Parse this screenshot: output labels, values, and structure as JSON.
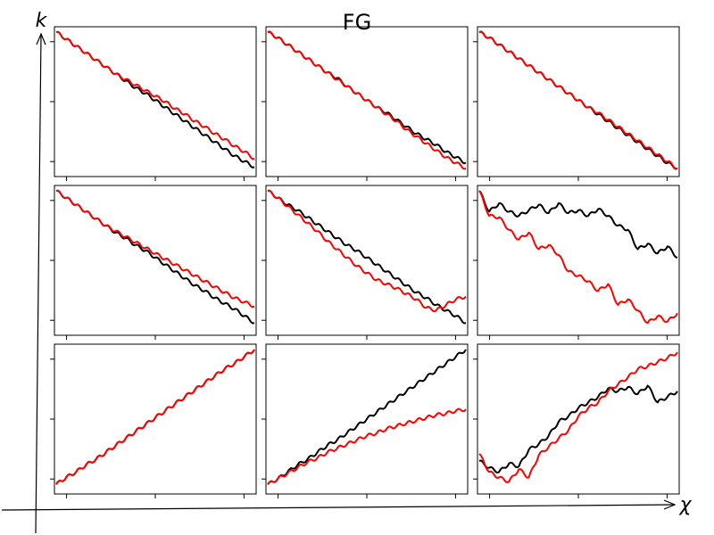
{
  "figure": {
    "title": "FG",
    "x_axis_label": "χ",
    "y_axis_label": "k"
  },
  "colors": {
    "black_series": "#000000",
    "red_series": "#ff0000"
  },
  "chart_data": [
    {
      "type": "line",
      "grid": false,
      "x": [
        0,
        0.05,
        0.1,
        0.15,
        0.2,
        0.25,
        0.3,
        0.35,
        0.4,
        0.45,
        0.5,
        0.55,
        0.6,
        0.65,
        0.7,
        0.75,
        0.8,
        0.85,
        0.9,
        0.95,
        1.0
      ],
      "series": [
        {
          "color": "black",
          "values": [
            1.0,
            0.95,
            0.9,
            0.85,
            0.8,
            0.75,
            0.7,
            0.65,
            0.6,
            0.56,
            0.51,
            0.46,
            0.41,
            0.36,
            0.31,
            0.26,
            0.21,
            0.16,
            0.11,
            0.07,
            0.03
          ]
        },
        {
          "color": "red",
          "values": [
            1.0,
            0.95,
            0.9,
            0.85,
            0.8,
            0.75,
            0.7,
            0.66,
            0.62,
            0.58,
            0.54,
            0.5,
            0.45,
            0.41,
            0.36,
            0.32,
            0.27,
            0.23,
            0.18,
            0.14,
            0.09
          ]
        }
      ]
    },
    {
      "type": "line",
      "grid": false,
      "x": [
        0,
        0.05,
        0.1,
        0.15,
        0.2,
        0.25,
        0.3,
        0.35,
        0.4,
        0.45,
        0.5,
        0.55,
        0.6,
        0.65,
        0.7,
        0.75,
        0.8,
        0.85,
        0.9,
        0.95,
        1.0
      ],
      "series": [
        {
          "color": "black",
          "values": [
            1.0,
            0.96,
            0.91,
            0.86,
            0.81,
            0.76,
            0.71,
            0.67,
            0.61,
            0.56,
            0.51,
            0.46,
            0.42,
            0.37,
            0.32,
            0.27,
            0.23,
            0.19,
            0.14,
            0.1,
            0.06
          ]
        },
        {
          "color": "red",
          "values": [
            1.0,
            0.96,
            0.91,
            0.86,
            0.81,
            0.76,
            0.71,
            0.66,
            0.61,
            0.56,
            0.51,
            0.46,
            0.41,
            0.36,
            0.3,
            0.25,
            0.2,
            0.15,
            0.1,
            0.06,
            0.02
          ]
        }
      ]
    },
    {
      "type": "line",
      "grid": false,
      "x": [
        0,
        0.05,
        0.1,
        0.15,
        0.2,
        0.25,
        0.3,
        0.35,
        0.4,
        0.45,
        0.5,
        0.55,
        0.6,
        0.65,
        0.7,
        0.75,
        0.8,
        0.85,
        0.9,
        0.95,
        1.0
      ],
      "series": [
        {
          "color": "black",
          "values": [
            1.0,
            0.96,
            0.91,
            0.86,
            0.81,
            0.76,
            0.71,
            0.66,
            0.61,
            0.56,
            0.51,
            0.46,
            0.41,
            0.36,
            0.31,
            0.26,
            0.21,
            0.16,
            0.11,
            0.06,
            0.02
          ]
        },
        {
          "color": "red",
          "values": [
            1.0,
            0.96,
            0.91,
            0.86,
            0.81,
            0.76,
            0.71,
            0.66,
            0.61,
            0.56,
            0.51,
            0.46,
            0.42,
            0.37,
            0.32,
            0.27,
            0.22,
            0.17,
            0.12,
            0.07,
            0.02
          ]
        }
      ]
    },
    {
      "type": "line",
      "grid": false,
      "x": [
        0,
        0.05,
        0.1,
        0.15,
        0.2,
        0.25,
        0.3,
        0.35,
        0.4,
        0.45,
        0.5,
        0.55,
        0.6,
        0.65,
        0.7,
        0.75,
        0.8,
        0.85,
        0.9,
        0.95,
        1.0
      ],
      "series": [
        {
          "color": "black",
          "values": [
            1.0,
            0.95,
            0.9,
            0.85,
            0.8,
            0.75,
            0.7,
            0.66,
            0.61,
            0.57,
            0.52,
            0.47,
            0.42,
            0.37,
            0.32,
            0.28,
            0.23,
            0.19,
            0.15,
            0.1,
            0.05
          ]
        },
        {
          "color": "red",
          "values": [
            1.0,
            0.95,
            0.9,
            0.85,
            0.8,
            0.75,
            0.71,
            0.67,
            0.63,
            0.59,
            0.55,
            0.51,
            0.47,
            0.43,
            0.39,
            0.35,
            0.31,
            0.27,
            0.23,
            0.2,
            0.17
          ]
        }
      ]
    },
    {
      "type": "line",
      "grid": false,
      "x": [
        0,
        0.05,
        0.1,
        0.15,
        0.2,
        0.25,
        0.3,
        0.35,
        0.4,
        0.45,
        0.5,
        0.55,
        0.6,
        0.65,
        0.7,
        0.75,
        0.8,
        0.85,
        0.9,
        0.95,
        1.0
      ],
      "series": [
        {
          "color": "black",
          "values": [
            1.0,
            0.95,
            0.9,
            0.86,
            0.81,
            0.76,
            0.71,
            0.66,
            0.61,
            0.57,
            0.52,
            0.47,
            0.42,
            0.37,
            0.32,
            0.27,
            0.23,
            0.18,
            0.14,
            0.1,
            0.05
          ]
        },
        {
          "color": "red",
          "values": [
            1.0,
            0.95,
            0.89,
            0.83,
            0.77,
            0.71,
            0.64,
            0.58,
            0.52,
            0.46,
            0.41,
            0.36,
            0.33,
            0.3,
            0.26,
            0.22,
            0.16,
            0.14,
            0.18,
            0.22,
            0.24
          ]
        }
      ]
    },
    {
      "type": "line",
      "grid": false,
      "x": [
        0,
        0.05,
        0.1,
        0.15,
        0.2,
        0.25,
        0.3,
        0.35,
        0.4,
        0.45,
        0.5,
        0.55,
        0.6,
        0.65,
        0.7,
        0.75,
        0.8,
        0.85,
        0.9,
        0.95,
        1.0
      ],
      "series": [
        {
          "color": "black",
          "values": [
            1.0,
            0.85,
            0.91,
            0.85,
            0.82,
            0.86,
            0.9,
            0.84,
            0.91,
            0.84,
            0.86,
            0.82,
            0.87,
            0.82,
            0.75,
            0.72,
            0.58,
            0.62,
            0.55,
            0.6,
            0.52
          ]
        },
        {
          "color": "red",
          "values": [
            1.0,
            0.82,
            0.81,
            0.72,
            0.65,
            0.7,
            0.58,
            0.61,
            0.54,
            0.42,
            0.39,
            0.35,
            0.28,
            0.33,
            0.18,
            0.22,
            0.14,
            0.05,
            0.1,
            0.06,
            0.12
          ]
        }
      ]
    },
    {
      "type": "line",
      "grid": false,
      "x": [
        0,
        0.05,
        0.1,
        0.15,
        0.2,
        0.25,
        0.3,
        0.35,
        0.4,
        0.45,
        0.5,
        0.55,
        0.6,
        0.65,
        0.7,
        0.75,
        0.8,
        0.85,
        0.9,
        0.95,
        1.0
      ],
      "series": [
        {
          "color": "black",
          "values": [
            0.03,
            0.08,
            0.12,
            0.17,
            0.21,
            0.26,
            0.31,
            0.36,
            0.41,
            0.46,
            0.51,
            0.56,
            0.61,
            0.66,
            0.71,
            0.76,
            0.81,
            0.86,
            0.9,
            0.95,
            1.0
          ]
        },
        {
          "color": "red",
          "values": [
            0.03,
            0.08,
            0.12,
            0.17,
            0.21,
            0.26,
            0.31,
            0.36,
            0.41,
            0.46,
            0.51,
            0.56,
            0.61,
            0.66,
            0.71,
            0.76,
            0.81,
            0.86,
            0.9,
            0.95,
            1.0
          ]
        }
      ]
    },
    {
      "type": "line",
      "grid": false,
      "x": [
        0,
        0.05,
        0.1,
        0.15,
        0.2,
        0.25,
        0.3,
        0.35,
        0.4,
        0.45,
        0.5,
        0.55,
        0.6,
        0.65,
        0.7,
        0.75,
        0.8,
        0.85,
        0.9,
        0.95,
        1.0
      ],
      "series": [
        {
          "color": "black",
          "values": [
            0.03,
            0.07,
            0.12,
            0.17,
            0.21,
            0.26,
            0.31,
            0.35,
            0.4,
            0.45,
            0.5,
            0.55,
            0.6,
            0.65,
            0.7,
            0.75,
            0.8,
            0.85,
            0.9,
            0.95,
            1.0
          ]
        },
        {
          "color": "red",
          "values": [
            0.03,
            0.07,
            0.11,
            0.15,
            0.19,
            0.22,
            0.26,
            0.29,
            0.32,
            0.35,
            0.38,
            0.4,
            0.43,
            0.45,
            0.47,
            0.49,
            0.51,
            0.53,
            0.54,
            0.56,
            0.57
          ]
        }
      ]
    },
    {
      "type": "line",
      "grid": false,
      "x": [
        0,
        0.05,
        0.1,
        0.15,
        0.2,
        0.25,
        0.3,
        0.35,
        0.4,
        0.45,
        0.5,
        0.55,
        0.6,
        0.65,
        0.7,
        0.75,
        0.8,
        0.85,
        0.9,
        0.95,
        1.0
      ],
      "series": [
        {
          "color": "black",
          "values": [
            0.2,
            0.15,
            0.12,
            0.18,
            0.16,
            0.28,
            0.32,
            0.38,
            0.48,
            0.52,
            0.58,
            0.62,
            0.66,
            0.72,
            0.7,
            0.73,
            0.68,
            0.74,
            0.62,
            0.66,
            0.7
          ]
        },
        {
          "color": "red",
          "values": [
            0.25,
            0.12,
            0.08,
            0.05,
            0.14,
            0.08,
            0.24,
            0.3,
            0.36,
            0.42,
            0.52,
            0.58,
            0.62,
            0.7,
            0.75,
            0.8,
            0.86,
            0.88,
            0.91,
            0.94,
            0.98
          ]
        }
      ]
    }
  ]
}
